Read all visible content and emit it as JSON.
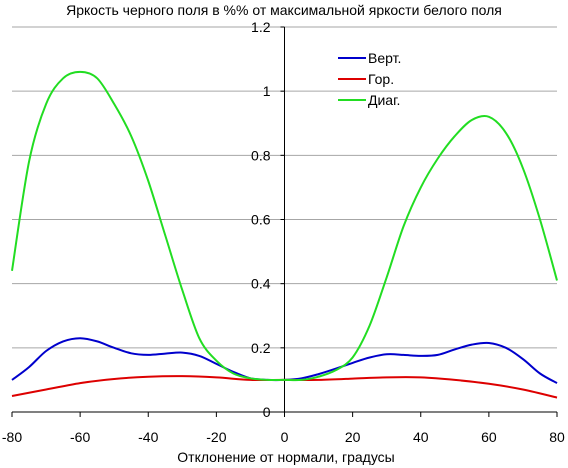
{
  "chart_data": {
    "type": "line",
    "title": "Яркость черного поля в %% от максимальной яркости белого поля",
    "xlabel": "Отклонение от нормали, градусы",
    "ylabel": "",
    "xlim": [
      -80,
      80
    ],
    "ylim": [
      0,
      1.2
    ],
    "xticks": [
      -80,
      -60,
      -40,
      -20,
      0,
      20,
      40,
      60,
      80
    ],
    "yticks": [
      0,
      0.2,
      0.4,
      0.6,
      0.8,
      1,
      1.2
    ],
    "xtick_labels": [
      "-80",
      "-60",
      "-40",
      "-20",
      "0",
      "20",
      "40",
      "60",
      "80"
    ],
    "ytick_labels": [
      "0",
      "0.2",
      "0.4",
      "0.6",
      "0.8",
      "1",
      "1.2"
    ],
    "grid": "horizontal",
    "legend_position": "top-right",
    "series": [
      {
        "name": "Верт.",
        "color": "#0000cc",
        "x": [
          -80,
          -75,
          -70,
          -65,
          -60,
          -55,
          -50,
          -45,
          -40,
          -35,
          -30,
          -25,
          -20,
          -15,
          -10,
          -5,
          0,
          5,
          10,
          15,
          20,
          25,
          30,
          35,
          40,
          45,
          50,
          55,
          60,
          65,
          70,
          75,
          80
        ],
        "y": [
          0.1,
          0.14,
          0.19,
          0.22,
          0.23,
          0.22,
          0.2,
          0.183,
          0.178,
          0.182,
          0.185,
          0.175,
          0.15,
          0.125,
          0.105,
          0.1,
          0.1,
          0.105,
          0.118,
          0.135,
          0.153,
          0.17,
          0.18,
          0.178,
          0.175,
          0.178,
          0.195,
          0.21,
          0.215,
          0.2,
          0.165,
          0.12,
          0.09
        ]
      },
      {
        "name": "Гор.",
        "color": "#dd0000",
        "x": [
          -80,
          -70,
          -60,
          -50,
          -40,
          -30,
          -20,
          -10,
          0,
          10,
          20,
          30,
          40,
          50,
          60,
          70,
          80
        ],
        "y": [
          0.05,
          0.07,
          0.09,
          0.103,
          0.11,
          0.112,
          0.108,
          0.1,
          0.1,
          0.1,
          0.104,
          0.108,
          0.108,
          0.1,
          0.088,
          0.07,
          0.045
        ]
      },
      {
        "name": "Диаг.",
        "color": "#22dd22",
        "x": [
          -80,
          -75,
          -70,
          -65,
          -60,
          -55,
          -50,
          -45,
          -40,
          -35,
          -30,
          -25,
          -20,
          -15,
          -10,
          -5,
          0,
          5,
          10,
          15,
          20,
          25,
          30,
          35,
          40,
          45,
          50,
          55,
          60,
          65,
          70,
          75,
          80
        ],
        "y": [
          0.44,
          0.78,
          0.96,
          1.04,
          1.06,
          1.04,
          0.96,
          0.86,
          0.72,
          0.55,
          0.38,
          0.23,
          0.16,
          0.12,
          0.105,
          0.1,
          0.1,
          0.1,
          0.11,
          0.13,
          0.17,
          0.27,
          0.42,
          0.58,
          0.7,
          0.79,
          0.86,
          0.91,
          0.92,
          0.87,
          0.76,
          0.6,
          0.41
        ]
      }
    ]
  }
}
